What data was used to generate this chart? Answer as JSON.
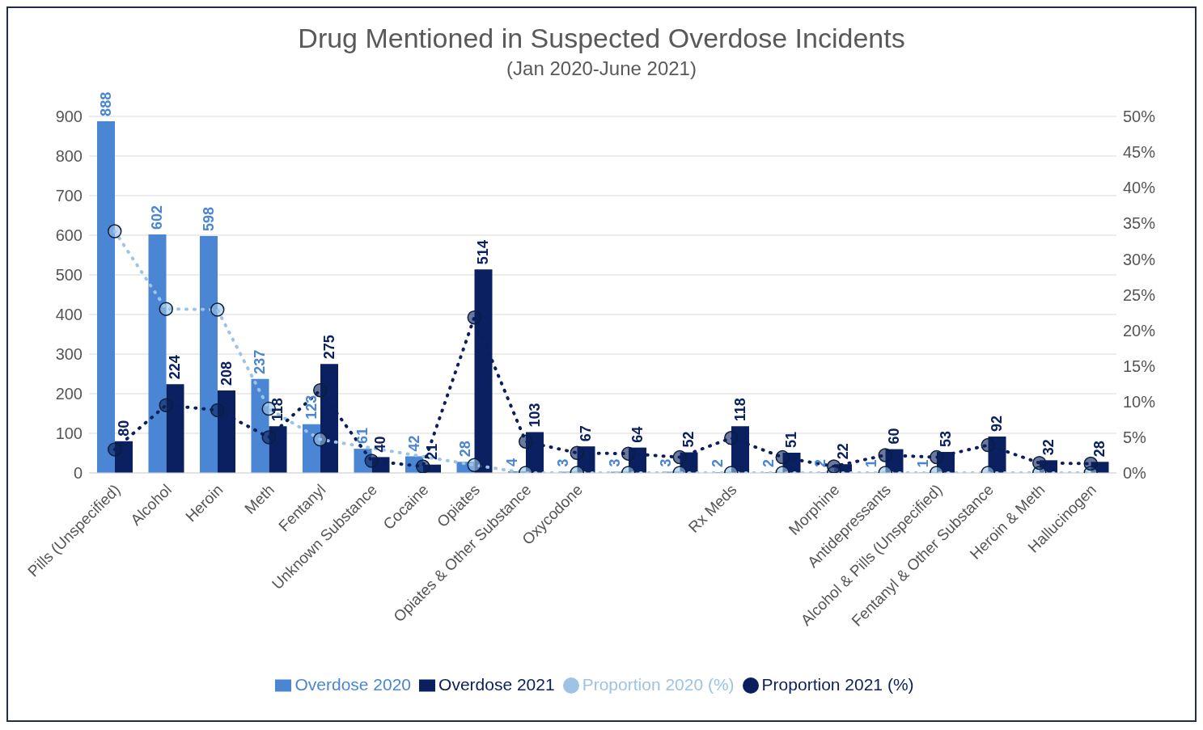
{
  "chart_data": {
    "type": "bar",
    "title": "Drug Mentioned in Suspected Overdose Incidents",
    "subtitle": "(Jan 2020-June 2021)",
    "categories": [
      "Pills (Unspecified)",
      "Alcohol",
      "Heroin",
      "Meth",
      "Fentanyl",
      "Unknown Substance",
      "Cocaine",
      "Opiates",
      "Opiates & Other Substance",
      "Oxycodone",
      null,
      null,
      "Rx Meds",
      null,
      "Morphine",
      "Antidepressants",
      "Alcohol & Pills (Unspecified)",
      "Fentanyl & Other Substance",
      "Heroin & Meth",
      "Hallucinogen"
    ],
    "series": [
      {
        "name": "Overdose 2020",
        "color": "#4a86d4",
        "values": [
          888,
          602,
          598,
          237,
          123,
          61,
          42,
          28,
          4,
          3,
          3,
          3,
          2,
          2,
          2,
          1,
          1,
          null,
          null,
          null
        ],
        "value_labels": [
          "888",
          "602",
          "598",
          "237",
          "123",
          "61",
          "42",
          "28",
          "4",
          "3",
          "3",
          "3",
          "2",
          "2",
          "2",
          "1",
          "1",
          null,
          null,
          null
        ]
      },
      {
        "name": "Overdose 2021",
        "color": "#0a2060",
        "values": [
          80,
          224,
          208,
          118,
          275,
          40,
          21,
          514,
          103,
          67,
          64,
          52,
          118,
          51,
          22,
          60,
          53,
          92,
          32,
          28
        ],
        "value_labels": [
          "80",
          "224",
          "208",
          "118",
          "275",
          "40",
          "21",
          "514",
          "103",
          "67",
          "64",
          "52",
          "118",
          "51",
          "22",
          "60",
          "53",
          "92",
          "32",
          "28"
        ]
      },
      {
        "name": "Proportion 2020 (%)",
        "type": "line",
        "axis": "y2",
        "color": "#9dc3e6",
        "values": [
          33.9,
          23.0,
          22.9,
          9.0,
          4.7,
          null,
          null,
          1.1,
          0,
          0,
          0,
          0,
          0,
          0,
          0,
          0,
          0,
          0,
          0,
          0
        ]
      },
      {
        "name": "Proportion 2021 (%)",
        "type": "line",
        "axis": "y2",
        "color": "#0a1f5c",
        "values": [
          3.3,
          9.5,
          8.8,
          5.0,
          11.6,
          1.7,
          0.9,
          21.8,
          4.4,
          2.8,
          2.7,
          2.2,
          4.9,
          2.2,
          0.9,
          2.5,
          2.2,
          3.9,
          1.4,
          1.3
        ]
      }
    ],
    "ylim": [
      0,
      900
    ],
    "yticks": [
      0,
      100,
      200,
      300,
      400,
      500,
      600,
      700,
      800,
      900
    ],
    "y2lim": [
      0,
      50
    ],
    "y2ticks": [
      {
        "value": 0,
        "label": "0%"
      },
      {
        "value": 5,
        "label": "5%"
      },
      {
        "value": 10,
        "label": "10%"
      },
      {
        "value": 15,
        "label": "15%"
      },
      {
        "value": 20,
        "label": "20%"
      },
      {
        "value": 25,
        "label": "25%"
      },
      {
        "value": 30,
        "label": "30%"
      },
      {
        "value": 35,
        "label": "35%"
      },
      {
        "value": 40,
        "label": "40%"
      },
      {
        "value": 45,
        "label": "45%"
      },
      {
        "value": 50,
        "label": "50%"
      }
    ],
    "grid": "y",
    "legend": "bottom",
    "marker": "circle",
    "line_style": "dotted"
  }
}
